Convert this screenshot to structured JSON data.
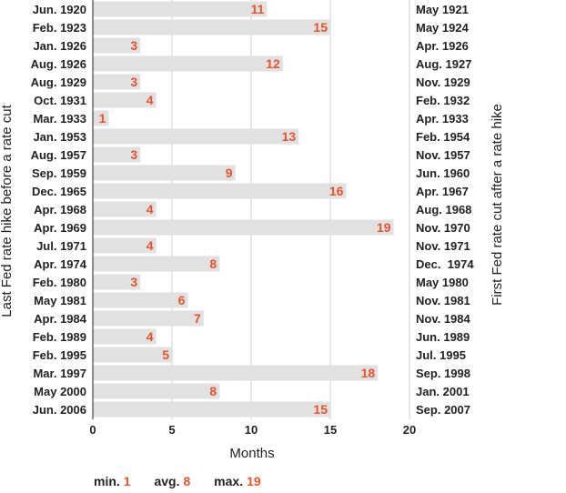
{
  "chart_data": {
    "type": "bar",
    "orientation": "horizontal",
    "categories": [
      "Jun. 1920",
      "Feb. 1923",
      "Jan. 1926",
      "Aug. 1926",
      "Aug. 1929",
      "Oct. 1931",
      "Mar. 1933",
      "Jan. 1953",
      "Aug. 1957",
      "Sep. 1959",
      "Dec. 1965",
      "Apr. 1968",
      "Apr. 1969",
      "Jul. 1971",
      "Apr. 1974",
      "Feb. 1980",
      "May 1981",
      "Apr. 1984",
      "Feb. 1989",
      "Feb. 1995",
      "Mar. 1997",
      "May 2000",
      "Jun. 2006"
    ],
    "right_labels": [
      "May 1921",
      "May 1924",
      "Apr. 1926",
      "Aug. 1927",
      "Nov. 1929",
      "Feb. 1932",
      "Apr. 1933",
      "Feb. 1954",
      "Nov. 1957",
      "Jun. 1960",
      "Apr. 1967",
      "Aug. 1968",
      "Nov. 1970",
      "Nov. 1971",
      "Dec.  1974",
      "May 1980",
      "Nov. 1981",
      "Nov. 1984",
      "Jun. 1989",
      "Jul. 1995",
      "Sep. 1998",
      "Jan. 2001",
      "Sep. 2007"
    ],
    "values": [
      11,
      15,
      3,
      12,
      3,
      4,
      1,
      13,
      3,
      9,
      16,
      4,
      19,
      4,
      8,
      3,
      6,
      7,
      4,
      5,
      18,
      8,
      15
    ],
    "xlabel": "Months",
    "ylabel": "Last Fed rate hike before a rate cut",
    "ylabel_right": "First Fed rate cut after a rate hike",
    "xlim": [
      0,
      20
    ],
    "xticks": [
      "0",
      "5",
      "10",
      "15",
      "20"
    ],
    "grid": true,
    "colors": {
      "bar": "#e1e1e1",
      "value_label": "#e8532c",
      "text": "#222222"
    }
  },
  "summary": {
    "min_label": "min.",
    "min_value": "1",
    "avg_label": "avg.",
    "avg_value": "8",
    "max_label": "max.",
    "max_value": "19"
  }
}
